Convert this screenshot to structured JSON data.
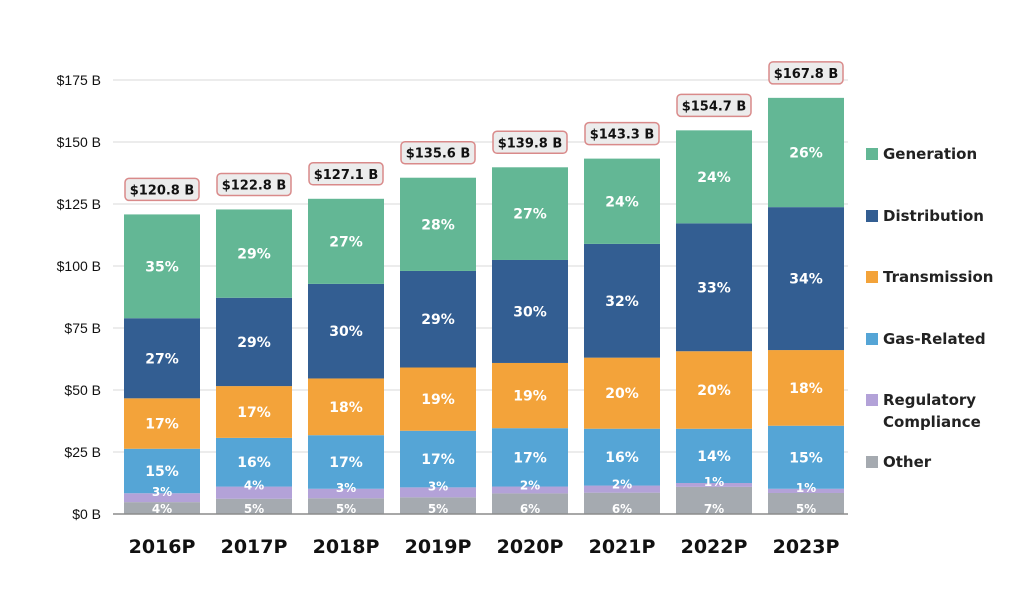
{
  "chart_data": {
    "type": "bar",
    "stacked": true,
    "title": "",
    "xlabel": "",
    "ylabel": "",
    "ylim": [
      0,
      175
    ],
    "y_tick_values": [
      0,
      25,
      50,
      75,
      100,
      125,
      150,
      175
    ],
    "y_tick_labels": [
      "$0 B",
      "$25 B",
      "$50 B",
      "$75 B",
      "$100 B",
      "$125 B",
      "$150 B",
      "$175 B"
    ],
    "grid": true,
    "legend_position": "right",
    "categories": [
      "2016P",
      "2017P",
      "2018P",
      "2019P",
      "2020P",
      "2021P",
      "2022P",
      "2023P"
    ],
    "totals": [
      120.8,
      122.8,
      127.1,
      135.6,
      139.8,
      143.3,
      154.7,
      167.8
    ],
    "total_labels": [
      "$120.8 B",
      "$122.8 B",
      "$127.1 B",
      "$135.6 B",
      "$139.8 B",
      "$143.3 B",
      "$154.7 B",
      "$167.8 B"
    ],
    "series": [
      {
        "name": "Other",
        "color": "#a5aab0",
        "shares": [
          4,
          5,
          5,
          5,
          6,
          6,
          7,
          5
        ],
        "labels": [
          "4%",
          "5%",
          "5%",
          "5%",
          "6%",
          "6%",
          "7%",
          "5%"
        ]
      },
      {
        "name": "Regulatory Compliance",
        "color": "#b3a2d8",
        "shares": [
          3,
          4,
          3,
          3,
          2,
          2,
          1,
          1
        ],
        "labels": [
          "3%",
          "4%",
          "3%",
          "3%",
          "2%",
          "2%",
          "1%",
          "1%"
        ]
      },
      {
        "name": "Gas-Related",
        "color": "#55a5d6",
        "shares": [
          15,
          16,
          17,
          17,
          17,
          16,
          14,
          15
        ],
        "labels": [
          "15%",
          "16%",
          "17%",
          "17%",
          "17%",
          "16%",
          "14%",
          "15%"
        ]
      },
      {
        "name": "Transmission",
        "color": "#f3a33a",
        "shares": [
          17,
          17,
          18,
          19,
          19,
          20,
          20,
          18
        ],
        "labels": [
          "17%",
          "17%",
          "18%",
          "19%",
          "19%",
          "20%",
          "20%",
          "18%"
        ]
      },
      {
        "name": "Distribution",
        "color": "#335e92",
        "shares": [
          27,
          29,
          30,
          29,
          30,
          32,
          33,
          34
        ],
        "labels": [
          "27%",
          "29%",
          "30%",
          "29%",
          "30%",
          "32%",
          "33%",
          "34%"
        ]
      },
      {
        "name": "Generation",
        "color": "#63b795",
        "shares": [
          35,
          29,
          27,
          28,
          27,
          24,
          24,
          26
        ],
        "labels": [
          "35%",
          "29%",
          "27%",
          "28%",
          "27%",
          "24%",
          "24%",
          "26%"
        ]
      }
    ],
    "legend": [
      {
        "label": "Generation",
        "color": "#63b795"
      },
      {
        "label": "Distribution",
        "color": "#335e92"
      },
      {
        "label": "Transmission",
        "color": "#f3a33a"
      },
      {
        "label": "Gas-Related",
        "color": "#55a5d6"
      },
      {
        "label": "Regulatory",
        "label2": "Compliance",
        "color": "#b3a2d8"
      },
      {
        "label": "Other",
        "color": "#a5aab0"
      }
    ]
  }
}
